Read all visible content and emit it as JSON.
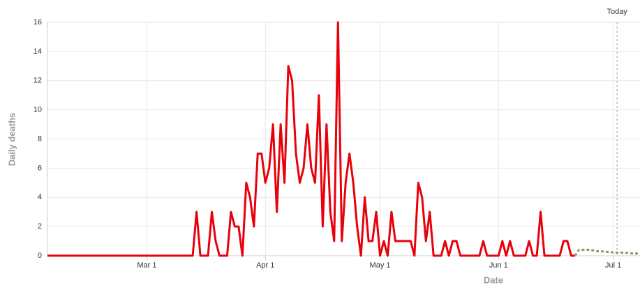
{
  "chart_data": {
    "type": "line",
    "x_label": "Date",
    "y_label": "Daily deaths",
    "xlim": [
      35,
      190
    ],
    "ylim": [
      0,
      16
    ],
    "xticks": [
      {
        "value": 61,
        "label": "Mar 1"
      },
      {
        "value": 92,
        "label": "Apr 1"
      },
      {
        "value": 122,
        "label": "May 1"
      },
      {
        "value": 153,
        "label": "Jun 1"
      },
      {
        "value": 183,
        "label": "Jul 1"
      }
    ],
    "yticks": [
      0,
      2,
      4,
      6,
      8,
      10,
      12,
      14,
      16
    ],
    "grid": true,
    "today": {
      "label": "Today",
      "x": 184
    },
    "series": [
      {
        "color": "#e8000b",
        "dashed": false,
        "x": [
          35,
          73,
          74,
          75,
          76,
          77,
          78,
          79,
          80,
          81,
          82,
          83,
          84,
          85,
          86,
          87,
          88,
          89,
          90,
          91,
          92,
          93,
          94,
          95,
          96,
          97,
          98,
          99,
          100,
          101,
          102,
          103,
          104,
          105,
          106,
          107,
          108,
          109,
          110,
          111,
          112,
          113,
          114,
          115,
          116,
          117,
          118,
          119,
          120,
          121,
          122,
          123,
          124,
          125,
          126,
          127,
          128,
          129,
          130,
          131,
          132,
          133,
          134,
          135,
          136,
          137,
          138,
          139,
          140,
          141,
          142,
          143,
          144,
          145,
          146,
          147,
          148,
          149,
          150,
          151,
          152,
          153,
          154,
          155,
          156,
          157,
          158,
          159,
          160,
          161,
          162,
          163,
          164,
          165,
          166,
          167,
          168,
          169,
          170,
          171,
          172,
          173
        ],
        "values": [
          0,
          0,
          3,
          0,
          0,
          0,
          3,
          1,
          0,
          0,
          0,
          3,
          2,
          2,
          0,
          5,
          4,
          2,
          7,
          7,
          5,
          6,
          9,
          3,
          9,
          5,
          13,
          12,
          7,
          5,
          6,
          9,
          6,
          5,
          11,
          2,
          9,
          3,
          1,
          16,
          1,
          5,
          7,
          5,
          2,
          0,
          4,
          1,
          1,
          3,
          0,
          1,
          0,
          3,
          1,
          1,
          1,
          1,
          1,
          0,
          5,
          4,
          1,
          3,
          0,
          0,
          0,
          1,
          0,
          1,
          1,
          0,
          0,
          0,
          0,
          0,
          0,
          1,
          0,
          0,
          0,
          0,
          1,
          0,
          1,
          0,
          0,
          0,
          0,
          1,
          0,
          0,
          3,
          0,
          0,
          0,
          0,
          0,
          1,
          1,
          0,
          0
        ]
      },
      {
        "color": "#8c9a5e",
        "dashed": true,
        "x": [
          173,
          174,
          175,
          176,
          177,
          178,
          179,
          180,
          182,
          184,
          186,
          188,
          190
        ],
        "values": [
          0,
          0.4,
          0.4,
          0.4,
          0.4,
          0.35,
          0.3,
          0.3,
          0.25,
          0.2,
          0.2,
          0.15,
          0.15
        ]
      }
    ]
  }
}
